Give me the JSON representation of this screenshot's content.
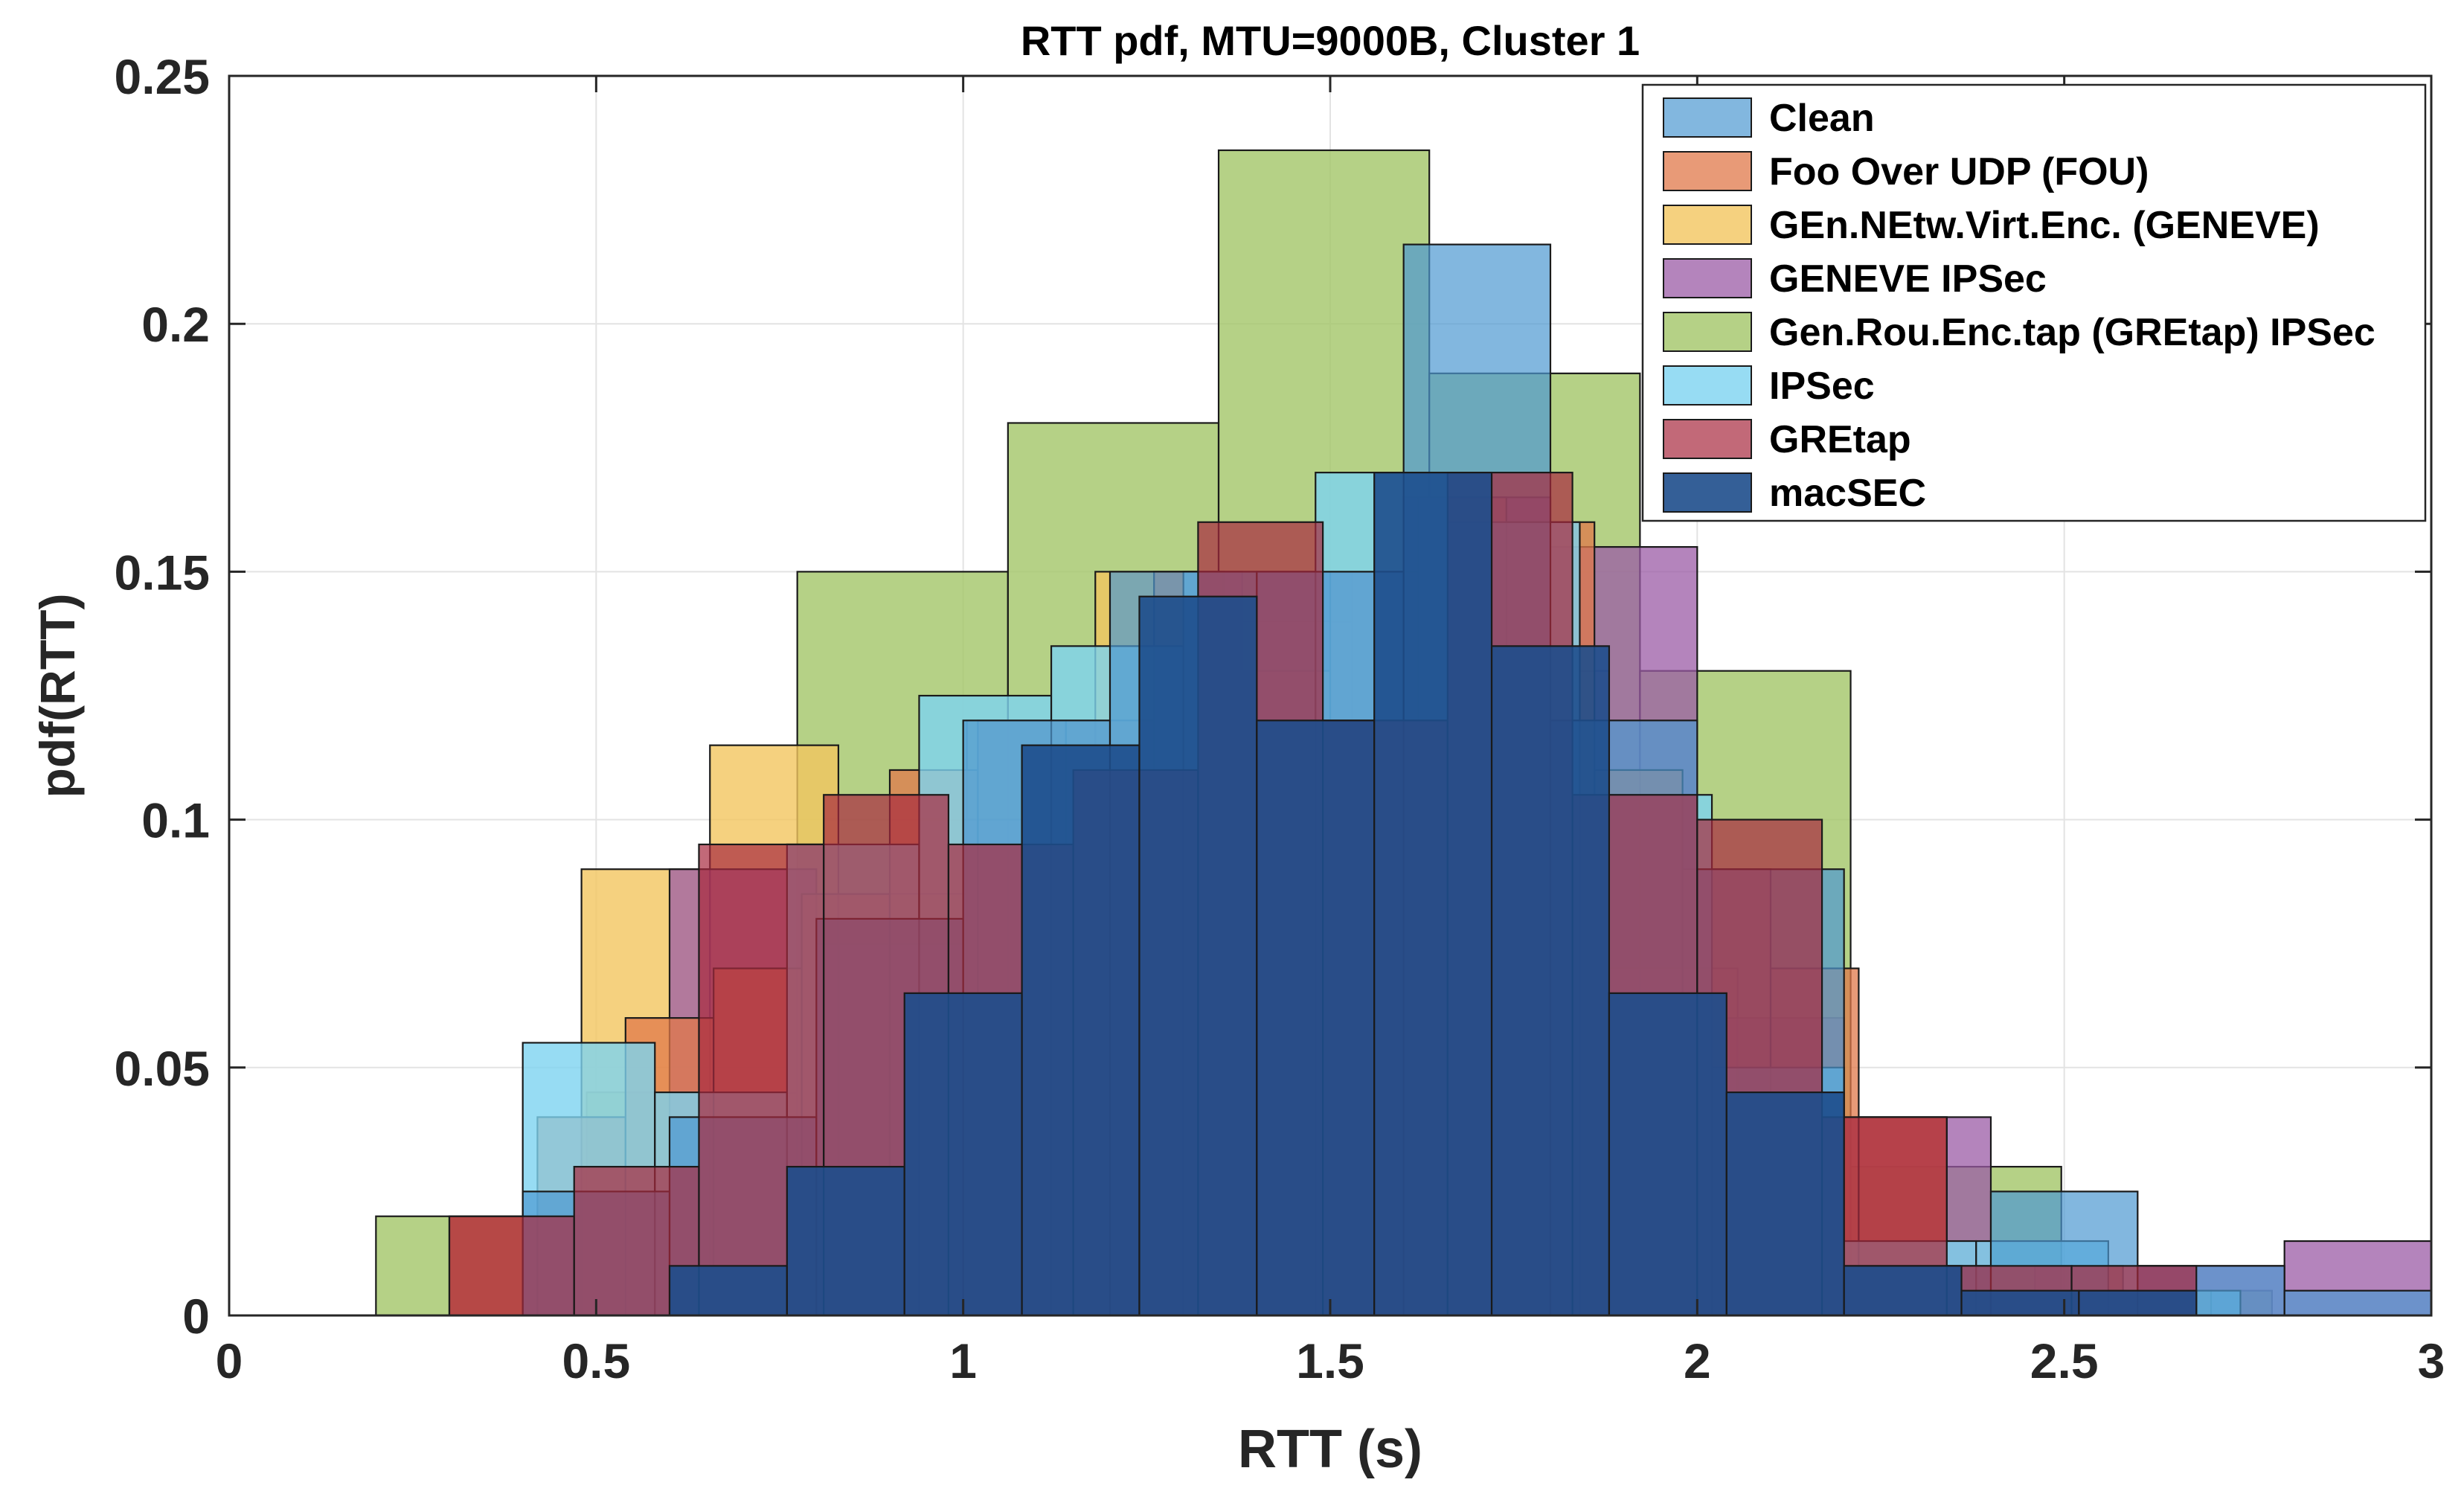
{
  "chart_data": {
    "type": "histogram",
    "title": "RTT pdf, MTU=9000B, Cluster 1",
    "xlabel": "RTT (s)",
    "ylabel": "pdf(RTT)",
    "xlim": [
      0,
      3
    ],
    "ylim": [
      0,
      0.25
    ],
    "xticks": [
      0,
      0.5,
      1,
      1.5,
      2,
      2.5,
      3
    ],
    "xtick_labels": [
      "0",
      "0.5",
      "1",
      "1.5",
      "2",
      "2.5",
      "3"
    ],
    "yticks": [
      0,
      0.05,
      0.1,
      0.15,
      0.2,
      0.25
    ],
    "ytick_labels": [
      "0",
      "0.05",
      "0.1",
      "0.15",
      "0.2",
      "0.25"
    ],
    "grid": true,
    "legend_position": "top-right",
    "series": [
      {
        "name": "Gen.Rou.Enc.tap (GREtap) IPSec",
        "color": "#a2c568",
        "opacity": 0.8,
        "edges": [
          0.2,
          0.487,
          0.774,
          1.061,
          1.348,
          1.635,
          1.922,
          2.209,
          2.496,
          2.783
        ],
        "values": [
          0.02,
          0.045,
          0.15,
          0.18,
          0.235,
          0.19,
          0.13,
          0.03,
          0.005
        ]
      },
      {
        "name": "GEn.NEtw.Virt.Enc. (GENEVE)",
        "color": "#f3c65f",
        "opacity": 0.8,
        "edges": [
          0.48,
          0.655,
          0.83,
          1.005,
          1.18,
          1.355,
          1.53,
          1.705,
          1.88,
          2.055
        ],
        "values": [
          0.09,
          0.115,
          0.085,
          0.12,
          0.15,
          0.14,
          0.15,
          0.13,
          0.07
        ]
      },
      {
        "name": "GENEVE IPSec",
        "color": "#9b5ba5",
        "opacity": 0.75,
        "edges": [
          0.6,
          0.8,
          1.0,
          1.2,
          1.4,
          1.6,
          1.8,
          2.0,
          2.2,
          2.4,
          2.6,
          2.8,
          3.0
        ],
        "values": [
          0.09,
          0.075,
          0.1,
          0.115,
          0.15,
          0.165,
          0.155,
          0.06,
          0.04,
          0.005,
          0.01,
          0.015
        ]
      },
      {
        "name": "Foo Over UDP (FOU)",
        "color": "#e0784a",
        "opacity": 0.75,
        "edges": [
          0.3,
          0.42,
          0.54,
          0.66,
          0.78,
          0.9,
          1.02,
          1.14,
          1.26,
          1.38,
          1.5,
          1.62,
          1.74,
          1.86,
          1.98,
          2.1,
          2.22,
          2.34,
          2.46,
          2.58,
          2.7
        ],
        "values": [
          0.02,
          0.04,
          0.06,
          0.07,
          0.085,
          0.11,
          0.12,
          0.12,
          0.15,
          0.13,
          0.15,
          0.165,
          0.16,
          0.11,
          0.09,
          0.07,
          0.04,
          0.005,
          0.01,
          0.005
        ]
      },
      {
        "name": "IPSec",
        "color": "#7dd3f0",
        "opacity": 0.8,
        "edges": [
          0.4,
          0.58,
          0.76,
          0.94,
          1.12,
          1.3,
          1.48,
          1.66,
          1.84,
          2.02,
          2.2,
          2.38,
          2.56,
          2.74
        ],
        "values": [
          0.055,
          0.045,
          0.095,
          0.125,
          0.135,
          0.15,
          0.17,
          0.16,
          0.105,
          0.05,
          0.015,
          0.015,
          0.005
        ]
      },
      {
        "name": "Clean",
        "color": "#4d98d1",
        "opacity": 0.7,
        "edges": [
          0.4,
          0.6,
          0.8,
          1.0,
          1.2,
          1.4,
          1.6,
          1.8,
          2.0,
          2.2,
          2.4,
          2.6,
          2.8,
          3.0
        ],
        "values": [
          0.025,
          0.04,
          0.08,
          0.12,
          0.15,
          0.15,
          0.216,
          0.12,
          0.09,
          0.01,
          0.025,
          0.01,
          0.005
        ]
      },
      {
        "name": "GREtap",
        "color": "#a82a3e",
        "opacity": 0.7,
        "edges": [
          0.3,
          0.47,
          0.64,
          0.81,
          0.98,
          1.15,
          1.32,
          1.49,
          1.66,
          1.83,
          2.0,
          2.17,
          2.34,
          2.51,
          2.68
        ],
        "values": [
          0.02,
          0.03,
          0.095,
          0.105,
          0.095,
          0.11,
          0.16,
          0.12,
          0.17,
          0.105,
          0.1,
          0.04,
          0.01,
          0.01
        ]
      },
      {
        "name": "macSEC",
        "color": "#1e4e8c",
        "opacity": 0.9,
        "edges": [
          0.6,
          0.76,
          0.92,
          1.08,
          1.24,
          1.4,
          1.56,
          1.72,
          1.88,
          2.04,
          2.2,
          2.36,
          2.52,
          2.68
        ],
        "values": [
          0.01,
          0.03,
          0.065,
          0.115,
          0.145,
          0.12,
          0.17,
          0.135,
          0.065,
          0.045,
          0.01,
          0.005,
          0.005
        ]
      }
    ],
    "legend_order": [
      "Clean",
      "Foo Over UDP (FOU)",
      "GEn.NEtw.Virt.Enc. (GENEVE)",
      "GENEVE IPSec",
      "Gen.Rou.Enc.tap (GREtap) IPSec",
      "IPSec",
      "GREtap",
      "macSEC"
    ]
  }
}
